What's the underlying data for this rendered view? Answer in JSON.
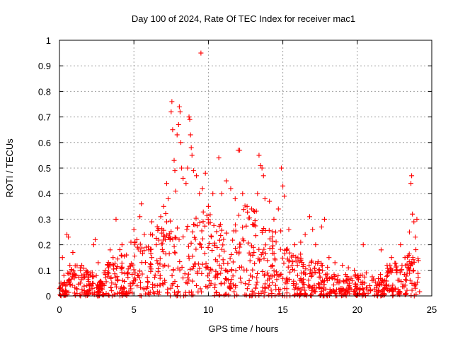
{
  "chart_data": {
    "type": "scatter",
    "title": "Day 100 of 2024, Rate Of TEC Index for receiver mac1",
    "xlabel": "GPS time / hours",
    "ylabel": "ROTI / TECUs",
    "xlim": [
      0,
      25
    ],
    "ylim": [
      0,
      1
    ],
    "xticks": [
      0,
      5,
      10,
      15,
      20,
      25
    ],
    "yticks": [
      0,
      0.1,
      0.2,
      0.3,
      0.4,
      0.5,
      0.6,
      0.7,
      0.8,
      0.9,
      1
    ],
    "xtick_labels": [
      "0",
      "5",
      "10",
      "15",
      "20",
      "25"
    ],
    "ytick_labels": [
      "0",
      "0.1",
      "0.2",
      "0.3",
      "0.4",
      "0.5",
      "0.6",
      "0.7",
      "0.8",
      "0.9",
      "1"
    ],
    "grid": true,
    "marker": "+",
    "color": "#ff0000",
    "series": [
      {
        "points": [
          [
            0.1,
            0.05
          ],
          [
            0.2,
            0.15
          ],
          [
            0.3,
            0.08
          ],
          [
            0.5,
            0.24
          ],
          [
            0.6,
            0.23
          ],
          [
            0.7,
            0.12
          ],
          [
            0.9,
            0.17
          ],
          [
            1.0,
            0.07
          ],
          [
            1.5,
            0.12
          ],
          [
            1.8,
            0.1
          ],
          [
            2.2,
            0.09
          ],
          [
            2.3,
            0.2
          ],
          [
            2.4,
            0.22
          ],
          [
            2.6,
            0.13
          ],
          [
            3.0,
            0.09
          ],
          [
            3.3,
            0.11
          ],
          [
            3.4,
            0.18
          ],
          [
            3.6,
            0.15
          ],
          [
            3.8,
            0.3
          ],
          [
            4.2,
            0.2
          ],
          [
            4.5,
            0.16
          ],
          [
            4.8,
            0.21
          ],
          [
            5.0,
            0.26
          ],
          [
            5.2,
            0.22
          ],
          [
            5.4,
            0.31
          ],
          [
            5.5,
            0.36
          ],
          [
            5.7,
            0.24
          ],
          [
            6.0,
            0.18
          ],
          [
            6.2,
            0.29
          ],
          [
            6.5,
            0.2
          ],
          [
            6.8,
            0.31
          ],
          [
            7.0,
            0.35
          ],
          [
            7.2,
            0.44
          ],
          [
            7.3,
            0.38
          ],
          [
            7.5,
            0.72
          ],
          [
            7.55,
            0.76
          ],
          [
            7.6,
            0.65
          ],
          [
            7.7,
            0.53
          ],
          [
            7.75,
            0.49
          ],
          [
            7.8,
            0.41
          ],
          [
            7.9,
            0.63
          ],
          [
            8.0,
            0.67
          ],
          [
            8.05,
            0.74
          ],
          [
            8.1,
            0.72
          ],
          [
            8.15,
            0.6
          ],
          [
            8.2,
            0.5
          ],
          [
            8.3,
            0.46
          ],
          [
            8.5,
            0.44
          ],
          [
            8.6,
            0.5
          ],
          [
            8.7,
            0.7
          ],
          [
            8.75,
            0.69
          ],
          [
            8.8,
            0.63
          ],
          [
            8.85,
            0.58
          ],
          [
            8.9,
            0.55
          ],
          [
            9.0,
            0.49
          ],
          [
            9.2,
            0.47
          ],
          [
            9.4,
            0.4
          ],
          [
            9.5,
            0.95
          ],
          [
            9.6,
            0.42
          ],
          [
            9.8,
            0.48
          ],
          [
            10.0,
            0.35
          ],
          [
            10.3,
            0.4
          ],
          [
            10.7,
            0.54
          ],
          [
            10.9,
            0.4
          ],
          [
            11.2,
            0.45
          ],
          [
            11.5,
            0.42
          ],
          [
            11.8,
            0.38
          ],
          [
            12.0,
            0.57
          ],
          [
            12.1,
            0.57
          ],
          [
            12.3,
            0.4
          ],
          [
            12.6,
            0.35
          ],
          [
            12.9,
            0.34
          ],
          [
            13.1,
            0.33
          ],
          [
            13.3,
            0.4
          ],
          [
            13.4,
            0.55
          ],
          [
            13.5,
            0.51
          ],
          [
            13.6,
            0.5
          ],
          [
            13.7,
            0.47
          ],
          [
            13.8,
            0.38
          ],
          [
            14.1,
            0.37
          ],
          [
            14.4,
            0.3
          ],
          [
            14.7,
            0.34
          ],
          [
            14.9,
            0.5
          ],
          [
            15.0,
            0.43
          ],
          [
            15.1,
            0.39
          ],
          [
            15.4,
            0.26
          ],
          [
            15.8,
            0.2
          ],
          [
            16.2,
            0.21
          ],
          [
            16.5,
            0.24
          ],
          [
            16.8,
            0.31
          ],
          [
            17.0,
            0.26
          ],
          [
            17.2,
            0.2
          ],
          [
            17.6,
            0.27
          ],
          [
            17.8,
            0.3
          ],
          [
            18.1,
            0.15
          ],
          [
            18.5,
            0.13
          ],
          [
            19.0,
            0.12
          ],
          [
            19.4,
            0.11
          ],
          [
            19.8,
            0.1
          ],
          [
            20.2,
            0.08
          ],
          [
            20.4,
            0.2
          ],
          [
            20.6,
            0.09
          ],
          [
            21.0,
            0.06
          ],
          [
            21.3,
            0.04
          ],
          [
            21.6,
            0.18
          ],
          [
            22.0,
            0.12
          ],
          [
            22.3,
            0.15
          ],
          [
            22.6,
            0.1
          ],
          [
            22.9,
            0.2
          ],
          [
            23.2,
            0.15
          ],
          [
            23.5,
            0.25
          ],
          [
            23.6,
            0.44
          ],
          [
            23.65,
            0.47
          ],
          [
            23.7,
            0.32
          ],
          [
            23.8,
            0.29
          ],
          [
            23.9,
            0.23
          ],
          [
            24.0,
            0.3
          ]
        ]
      }
    ]
  }
}
